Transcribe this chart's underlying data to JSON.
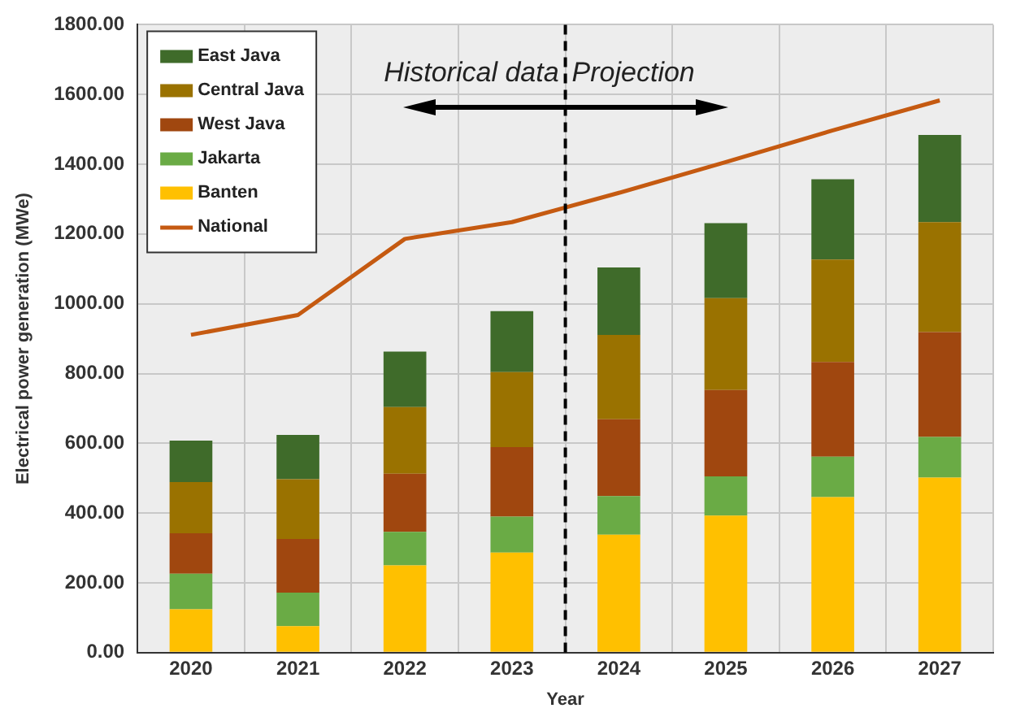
{
  "chart_data": {
    "type": "bar",
    "stacked": true,
    "xlabel": "Year",
    "ylabel": "Electrical power generation (MWe)",
    "x": [
      2020,
      2021,
      2022,
      2023,
      2024,
      2025,
      2026,
      2027
    ],
    "xlim": [
      2019.5,
      2027.5
    ],
    "xticks": [
      2020,
      2021,
      2022,
      2023,
      2024,
      2025,
      2026,
      2027
    ],
    "ylim": [
      0,
      1800
    ],
    "yticks": [
      {
        "value": 0,
        "label": "0.00"
      },
      {
        "value": 200,
        "label": "200.00"
      },
      {
        "value": 400,
        "label": "400.00"
      },
      {
        "value": 600,
        "label": "600.00"
      },
      {
        "value": 800,
        "label": "800.00"
      },
      {
        "value": 1000,
        "label": "1000.00"
      },
      {
        "value": 1200,
        "label": "1200.00"
      },
      {
        "value": 1400,
        "label": "1400.00"
      },
      {
        "value": 1600,
        "label": "1600.00"
      },
      {
        "value": 1800,
        "label": "1800.00"
      }
    ],
    "series": [
      {
        "name": "Banten",
        "color": "#ffc000",
        "values": [
          124,
          76,
          250,
          287,
          338,
          393,
          446,
          502
        ]
      },
      {
        "name": "Jakarta",
        "color": "#6aab45",
        "values": [
          102,
          96,
          96,
          103,
          111,
          112,
          116,
          116
        ]
      },
      {
        "name": "West Java",
        "color": "#a0470f",
        "values": [
          116,
          154,
          167,
          199,
          220,
          248,
          271,
          301
        ]
      },
      {
        "name": "Central Java",
        "color": "#9a7200",
        "values": [
          147,
          171,
          191,
          215,
          242,
          263,
          294,
          315
        ]
      },
      {
        "name": "East Java",
        "color": "#3f6b2a",
        "values": [
          119,
          127,
          159,
          175,
          193,
          215,
          230,
          250
        ]
      },
      {
        "name": "National",
        "type": "line",
        "color": "#c55a11",
        "values": [
          911,
          968,
          1186,
          1234,
          1318,
          1406,
          1497,
          1583
        ]
      }
    ],
    "ref_lines": [
      {
        "axis": "x",
        "value": 2023.5,
        "color": "#000000",
        "line_style": "dashed"
      }
    ],
    "annotations": [
      "Historical data",
      "Projection"
    ],
    "grid": true,
    "legend": "top left",
    "marker": "none"
  }
}
